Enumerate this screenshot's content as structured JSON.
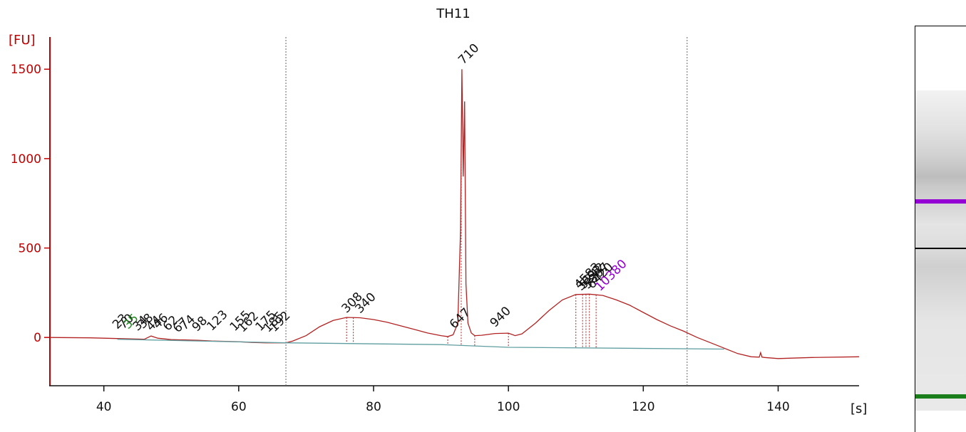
{
  "chart_data": {
    "type": "line",
    "title": "TH11",
    "xlabel": "[s]",
    "ylabel": "[FU]",
    "xlim": [
      32,
      152
    ],
    "ylim": [
      -270,
      1680
    ],
    "x_ticks": [
      40,
      60,
      80,
      100,
      120,
      140
    ],
    "y_ticks": [
      0,
      500,
      1000,
      1500
    ],
    "grid": false,
    "legend": "none",
    "colors": {
      "trace": "#b22222",
      "axis": "#c00000",
      "baseline": "#5f9ea0",
      "marker_lower": "#228b22",
      "marker_upper": "#9400d3",
      "markers": "#666666"
    },
    "vertical_markers_x": [
      67,
      126.5
    ],
    "series": [
      {
        "values": [
          [
            32,
            0
          ],
          [
            38,
            -2
          ],
          [
            40,
            -4
          ],
          [
            42,
            -6
          ],
          [
            44,
            -8
          ],
          [
            46,
            -10
          ],
          [
            47,
            8
          ],
          [
            48,
            -4
          ],
          [
            50,
            -12
          ],
          [
            52,
            -14
          ],
          [
            54,
            -16
          ],
          [
            56,
            -20
          ],
          [
            58,
            -22
          ],
          [
            60,
            -24
          ],
          [
            62,
            -28
          ],
          [
            64,
            -30
          ],
          [
            66,
            -30
          ],
          [
            67,
            -30
          ],
          [
            68,
            -20
          ],
          [
            70,
            10
          ],
          [
            72,
            60
          ],
          [
            74,
            95
          ],
          [
            76,
            112
          ],
          [
            78,
            110
          ],
          [
            80,
            100
          ],
          [
            82,
            85
          ],
          [
            84,
            65
          ],
          [
            86,
            45
          ],
          [
            88,
            25
          ],
          [
            90,
            10
          ],
          [
            91,
            5
          ],
          [
            91.8,
            15
          ],
          [
            92.5,
            80
          ],
          [
            92.9,
            600
          ],
          [
            93.1,
            1500
          ],
          [
            93.3,
            900
          ],
          [
            93.5,
            1320
          ],
          [
            93.7,
            300
          ],
          [
            94,
            80
          ],
          [
            94.5,
            25
          ],
          [
            95,
            10
          ],
          [
            96,
            12
          ],
          [
            98,
            22
          ],
          [
            100,
            24
          ],
          [
            101,
            10
          ],
          [
            102,
            20
          ],
          [
            104,
            80
          ],
          [
            106,
            150
          ],
          [
            108,
            210
          ],
          [
            110,
            240
          ],
          [
            112,
            242
          ],
          [
            114,
            235
          ],
          [
            116,
            210
          ],
          [
            118,
            180
          ],
          [
            120,
            140
          ],
          [
            122,
            100
          ],
          [
            124,
            65
          ],
          [
            126,
            35
          ],
          [
            128,
            0
          ],
          [
            130,
            -30
          ],
          [
            132,
            -60
          ],
          [
            134,
            -90
          ],
          [
            136,
            -108
          ],
          [
            137.2,
            -110
          ],
          [
            137.4,
            -85
          ],
          [
            137.6,
            -110
          ],
          [
            138,
            -112
          ],
          [
            140,
            -118
          ],
          [
            145,
            -112
          ],
          [
            152,
            -108
          ]
        ]
      },
      {
        "values": [
          [
            42,
            -10
          ],
          [
            67,
            -30
          ],
          [
            90,
            -40
          ],
          [
            100,
            -55
          ],
          [
            132,
            -65
          ]
        ]
      }
    ],
    "peak_markers_x": [
      76,
      77,
      91,
      93,
      95,
      100,
      110,
      111,
      111.5,
      112,
      113
    ],
    "annotations": [
      {
        "text": "710",
        "x": 93.3,
        "y": 1500,
        "color": "#111111"
      },
      {
        "text": "308",
        "x": 76,
        "y": 110,
        "color": "#111111"
      },
      {
        "text": "340",
        "x": 78,
        "y": 108,
        "color": "#111111"
      },
      {
        "text": "647",
        "x": 92,
        "y": 22,
        "color": "#111111"
      },
      {
        "text": "940",
        "x": 98,
        "y": 30,
        "color": "#111111"
      },
      {
        "text": "4583",
        "x": 110.5,
        "y": 245,
        "color": "#111111"
      },
      {
        "text": "5242",
        "x": 111.2,
        "y": 245,
        "color": "#111111"
      },
      {
        "text": "5807",
        "x": 111.8,
        "y": 245,
        "color": "#111111"
      },
      {
        "text": "6420",
        "x": 112.4,
        "y": 245,
        "color": "#111111"
      },
      {
        "text": "3691",
        "x": 110.8,
        "y": 235,
        "color": "#111111"
      },
      {
        "text": "10380",
        "x": 113.6,
        "y": 232,
        "color": "#9400d3"
      },
      {
        "text": "23",
        "x": 42,
        "y": 20,
        "color": "#111111"
      },
      {
        "text": "70",
        "x": 42.9,
        "y": 20,
        "color": "#111111"
      },
      {
        "text": "35",
        "x": 43.6,
        "y": 20,
        "color": "#228b22"
      },
      {
        "text": "34",
        "x": 45,
        "y": 10,
        "color": "#111111"
      },
      {
        "text": "38",
        "x": 45.8,
        "y": 22,
        "color": "#111111"
      },
      {
        "text": "44",
        "x": 47,
        "y": 10,
        "color": "#111111"
      },
      {
        "text": "46",
        "x": 48,
        "y": 22,
        "color": "#111111"
      },
      {
        "text": "62",
        "x": 49.5,
        "y": 10,
        "color": "#111111"
      },
      {
        "text": "67",
        "x": 51,
        "y": 0,
        "color": "#111111"
      },
      {
        "text": "74",
        "x": 52,
        "y": 14,
        "color": "#111111"
      },
      {
        "text": "98",
        "x": 53.8,
        "y": 6,
        "color": "#111111"
      },
      {
        "text": "123",
        "x": 56,
        "y": 10,
        "color": "#111111"
      },
      {
        "text": "155",
        "x": 59.4,
        "y": 8,
        "color": "#111111"
      },
      {
        "text": "162",
        "x": 60.6,
        "y": 2,
        "color": "#111111"
      },
      {
        "text": "175",
        "x": 63.2,
        "y": 8,
        "color": "#111111"
      },
      {
        "text": "185",
        "x": 64.4,
        "y": 2,
        "color": "#111111"
      },
      {
        "text": "192",
        "x": 65.3,
        "y": 4,
        "color": "#111111"
      }
    ]
  },
  "gel": {
    "bands": [
      {
        "label": "upper marker",
        "position": 0.43,
        "color": "#9400d3"
      },
      {
        "label": "710",
        "position": 0.55,
        "color": "#000000"
      },
      {
        "label": "lower marker",
        "position": 0.91,
        "color": "#1a7f1a"
      }
    ]
  }
}
